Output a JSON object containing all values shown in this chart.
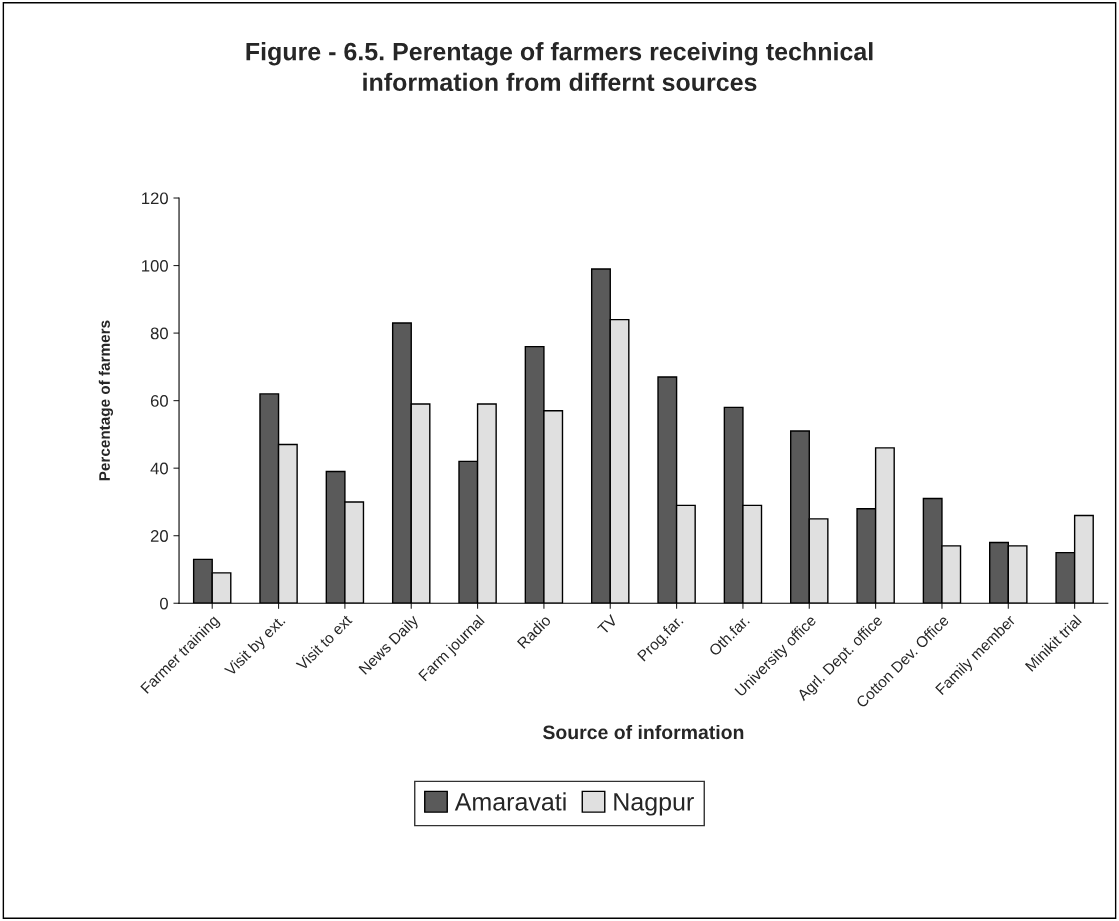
{
  "chart_data": {
    "type": "bar",
    "title": "Figure - 6.5. Perentage of farmers receiving technical\ninformation from differnt sources",
    "xlabel": "Source of information",
    "ylabel": "Percentage of farmers",
    "categories": [
      "Farmer training",
      "Visit by ext.",
      "Visit to ext",
      "News Daily",
      "Farm journal",
      "Radio",
      "TV",
      "Prog.far.",
      "Oth.far.",
      "University office",
      "Agrl. Dept. office",
      "Cotton Dev. Office",
      "Family member",
      "Minikit trial"
    ],
    "series": [
      {
        "name": "Amaravati",
        "color": "#5a5a5a",
        "values": [
          13,
          62,
          39,
          83,
          42,
          76,
          99,
          67,
          58,
          51,
          28,
          31,
          18,
          15
        ]
      },
      {
        "name": "Nagpur",
        "color": "#e0e0e0",
        "values": [
          9,
          47,
          30,
          59,
          59,
          57,
          84,
          29,
          29,
          25,
          46,
          17,
          17,
          26
        ]
      }
    ],
    "ylim": [
      0,
      120
    ],
    "yticks": [
      0,
      20,
      40,
      60,
      80,
      100,
      120
    ],
    "grid": false,
    "legend": "bottom"
  }
}
